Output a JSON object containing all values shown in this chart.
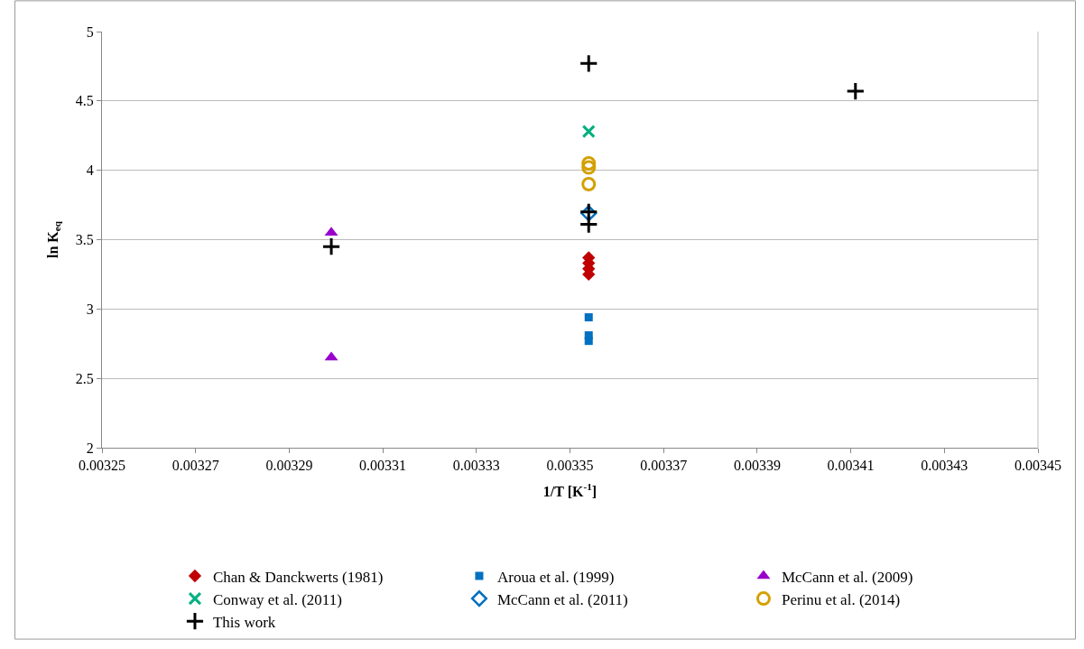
{
  "chart_data": {
    "type": "scatter",
    "xlabel": "1/T [K$^{-1}$]",
    "ylabel": "ln K$_{eq}$",
    "xlim": [
      0.00325,
      0.00345
    ],
    "xticks": [
      0.00325,
      0.00327,
      0.00329,
      0.00331,
      0.00333,
      0.00335,
      0.00337,
      0.00339,
      0.00341,
      0.00343,
      0.00345
    ],
    "ylim": [
      2,
      5
    ],
    "yticks": [
      2,
      2.5,
      3,
      3.5,
      4,
      4.5,
      5
    ],
    "grid": "y",
    "legend": "bottom",
    "series": [
      {
        "name": "Chan & Danckwerts (1981)",
        "color": "#c00000",
        "marker": "diamond",
        "x": [
          0.003354,
          0.003354,
          0.003354,
          0.003354
        ],
        "values": [
          3.37,
          3.33,
          3.29,
          3.25
        ]
      },
      {
        "name": "Aroua et al. (1999)",
        "color": "#0070c0",
        "marker": "square",
        "x": [
          0.003354,
          0.003354,
          0.003354
        ],
        "values": [
          2.94,
          2.81,
          2.77
        ]
      },
      {
        "name": "McCann et al. (2009)",
        "color": "#9900cc",
        "marker": "triangle",
        "x": [
          0.003299,
          0.003299
        ],
        "values": [
          3.55,
          2.65
        ]
      },
      {
        "name": "Conway et al. (2011)",
        "color": "#00b080",
        "marker": "x",
        "x": [
          0.003354
        ],
        "values": [
          4.28
        ]
      },
      {
        "name": "McCann et al. (2011)",
        "color": "#0070c0",
        "marker": "diamond-open",
        "x": [
          0.003354
        ],
        "values": [
          3.69
        ]
      },
      {
        "name": "Perinu et al. (2014)",
        "color": "#d4a000",
        "marker": "circle-open",
        "x": [
          0.003354,
          0.003354,
          0.003354
        ],
        "values": [
          4.05,
          4.02,
          3.9
        ]
      },
      {
        "name": "This work",
        "color": "#000000",
        "marker": "plus",
        "x": [
          0.003354,
          0.003354,
          0.003354,
          0.003299,
          0.003411
        ],
        "values": [
          4.77,
          3.7,
          3.61,
          3.45,
          4.57
        ]
      }
    ]
  }
}
